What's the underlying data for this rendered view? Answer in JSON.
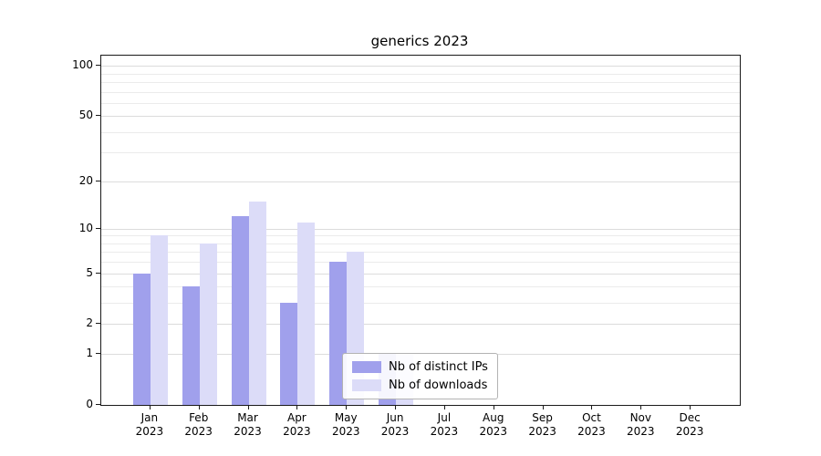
{
  "title": "generics 2023",
  "chart_data": {
    "type": "bar",
    "title": "generics 2023",
    "categories": [
      {
        "label": "Jan",
        "sub": "2023"
      },
      {
        "label": "Feb",
        "sub": "2023"
      },
      {
        "label": "Mar",
        "sub": "2023"
      },
      {
        "label": "Apr",
        "sub": "2023"
      },
      {
        "label": "May",
        "sub": "2023"
      },
      {
        "label": "Jun",
        "sub": "2023"
      },
      {
        "label": "Jul",
        "sub": "2023"
      },
      {
        "label": "Aug",
        "sub": "2023"
      },
      {
        "label": "Sep",
        "sub": "2023"
      },
      {
        "label": "Oct",
        "sub": "2023"
      },
      {
        "label": "Nov",
        "sub": "2023"
      },
      {
        "label": "Dec",
        "sub": "2023"
      }
    ],
    "series": [
      {
        "name": "Nb of distinct IPs",
        "color": "#a0a0ec",
        "values": [
          5,
          4,
          12,
          3,
          6,
          1,
          0,
          0,
          0,
          0,
          0,
          0
        ]
      },
      {
        "name": "Nb of downloads",
        "color": "#dcdcf8",
        "values": [
          9,
          8,
          15,
          11,
          7,
          1,
          0,
          0,
          0,
          0,
          0,
          0
        ]
      }
    ],
    "xlabel": "",
    "ylabel": "",
    "yscale": "log1p",
    "ylim": [
      0,
      115
    ],
    "yticks": [
      0,
      1,
      2,
      5,
      10,
      20,
      50,
      100
    ],
    "grid_major": [
      1,
      2,
      5,
      10,
      20,
      50,
      100
    ],
    "grid_minor": [
      3,
      4,
      6,
      7,
      8,
      9,
      30,
      40,
      60,
      70,
      80,
      90
    ],
    "grid": "horizontal",
    "legend_position": "inside-bottom-center"
  }
}
